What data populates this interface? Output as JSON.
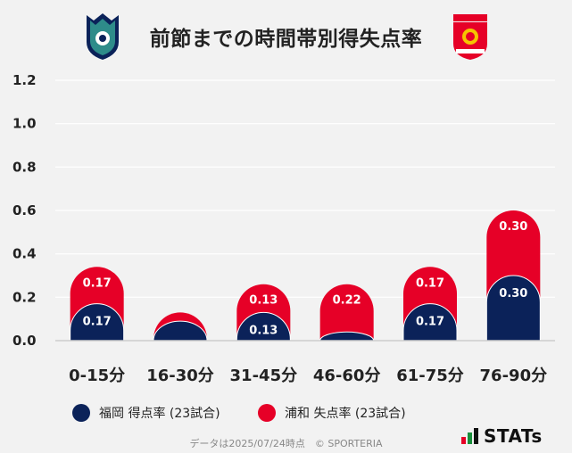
{
  "title": "前節までの時間帯別得失点率",
  "colors": {
    "home": "#0b2259",
    "away": "#e60027",
    "grid": "#ffffff",
    "axis": "#cccccc",
    "text": "#222222"
  },
  "legend": {
    "home_label": "福岡 得点率 (23試合)",
    "away_label": "浦和 失点率 (23試合)"
  },
  "footer": "データは2025/07/24時点　© SPORTERIA",
  "brand": "STATs",
  "chart_data": {
    "type": "bar",
    "stacked": true,
    "title": "前節までの時間帯別得失点率",
    "categories": [
      "0-15分",
      "16-30分",
      "31-45分",
      "46-60分",
      "61-75分",
      "76-90分"
    ],
    "series": [
      {
        "name": "福岡 得点率 (23試合)",
        "color": "#0b2259",
        "values": [
          0.17,
          0.09,
          0.13,
          0.04,
          0.17,
          0.3
        ],
        "labels": [
          "0.17",
          "",
          "0.13",
          "",
          "0.17",
          "0.30"
        ]
      },
      {
        "name": "浦和 失点率 (23試合)",
        "color": "#e60027",
        "values": [
          0.17,
          0.04,
          0.13,
          0.22,
          0.17,
          0.3
        ],
        "labels": [
          "0.17",
          "",
          "0.13",
          "0.22",
          "0.17",
          "0.30"
        ]
      }
    ],
    "ylim": [
      0,
      1.2
    ],
    "yticks": [
      0.0,
      0.2,
      0.4,
      0.6,
      0.8,
      1.0,
      1.2
    ],
    "ytick_labels": [
      "0.0",
      "0.2",
      "0.4",
      "0.6",
      "0.8",
      "1.0",
      "1.2"
    ],
    "grid": true
  }
}
